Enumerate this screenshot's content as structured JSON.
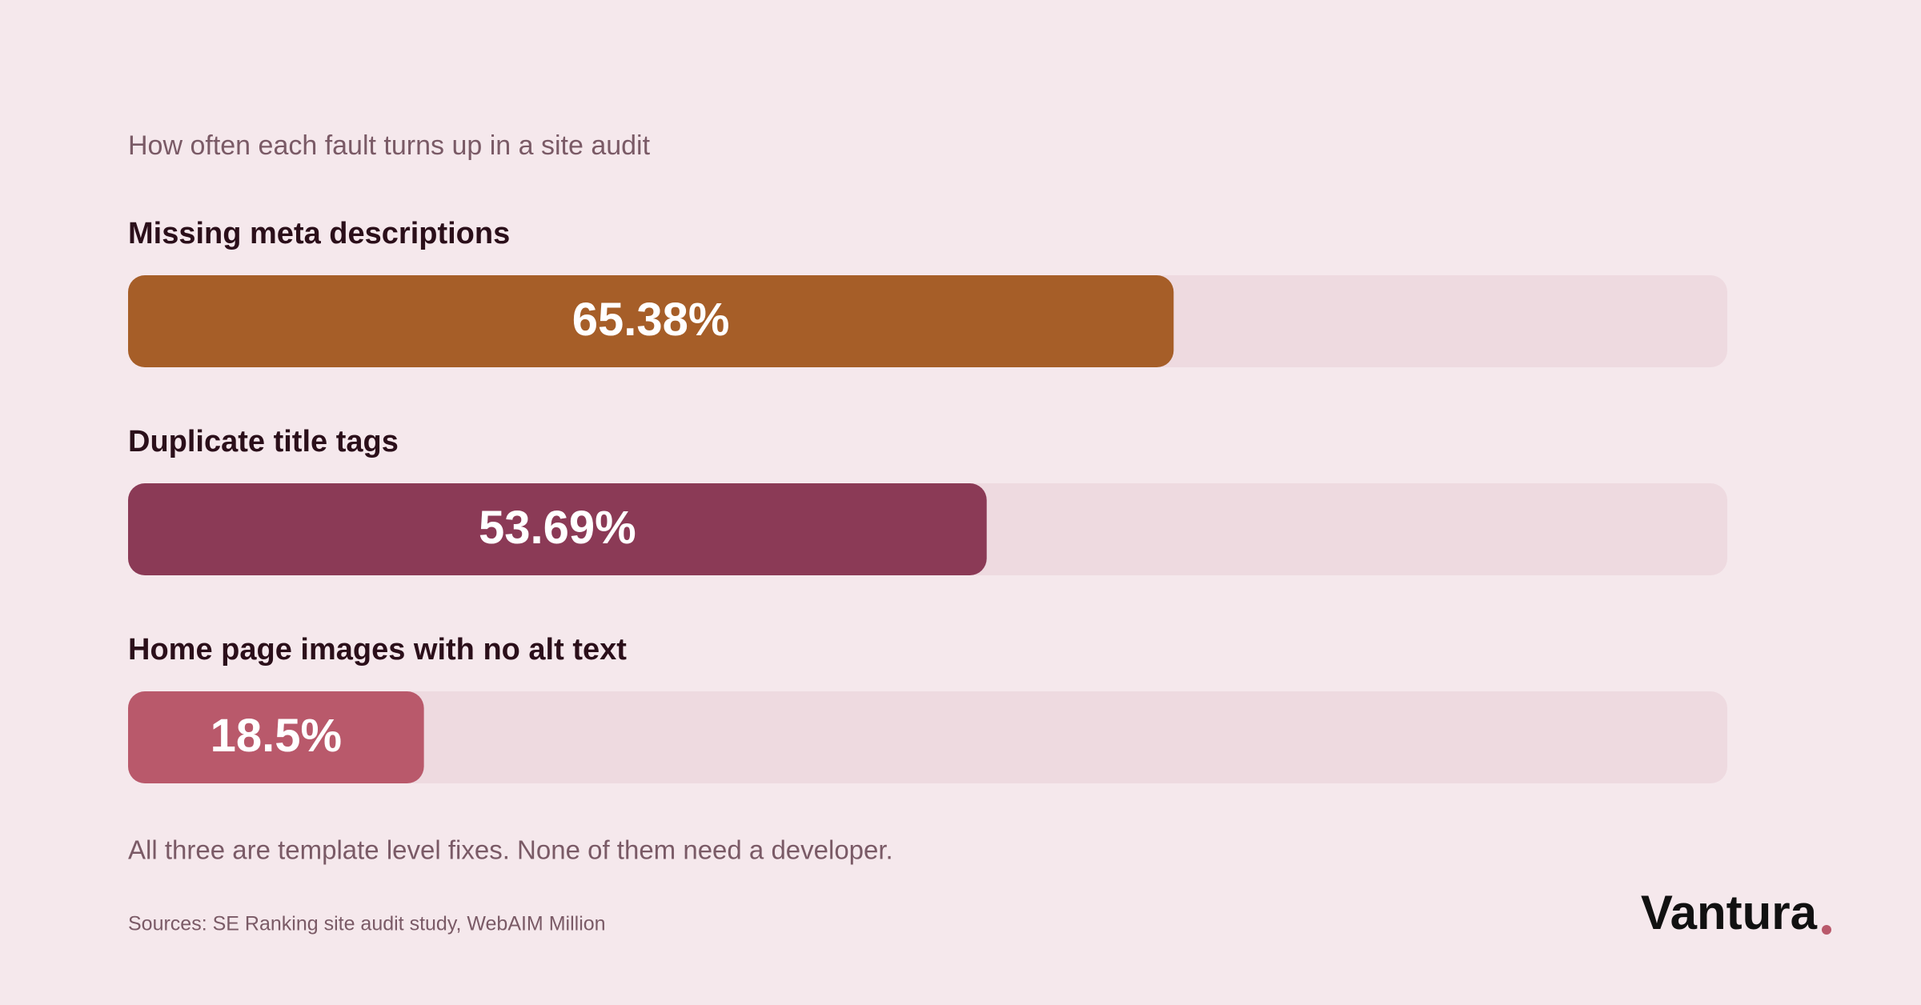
{
  "chart_data": {
    "type": "bar",
    "orientation": "horizontal",
    "subtitle": "How often each fault turns up in a site audit",
    "categories": [
      "Missing meta descriptions",
      "Duplicate title tags",
      "Home page images with no alt text"
    ],
    "values": [
      65.38,
      53.69,
      18.5
    ],
    "value_labels": [
      "65.38%",
      "53.69%",
      "18.5%"
    ],
    "colors": [
      "#a65e28",
      "#8b3a56",
      "#b9596b"
    ],
    "xlim": [
      0,
      100
    ],
    "note": "All three are template level fixes. None of them need a developer.",
    "source": "Sources: SE Ranking site audit study, WebAIM Million"
  },
  "brand": "Vantura"
}
